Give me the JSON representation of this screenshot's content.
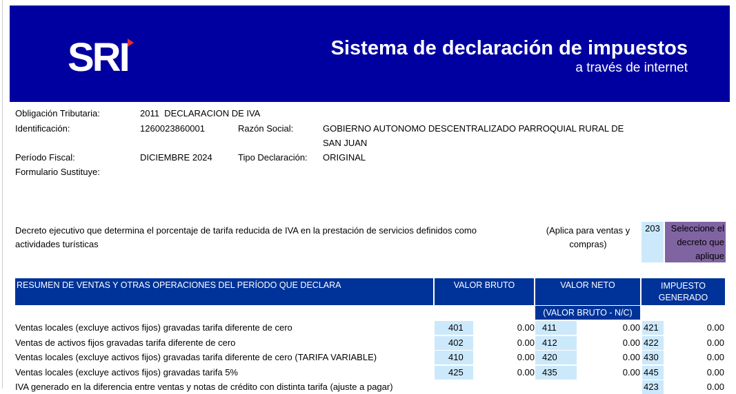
{
  "header": {
    "logo": "SRI",
    "title": "Sistema de declaración de impuestos",
    "subtitle": "a través de internet",
    "colors": {
      "banner": "#0000a0",
      "table_header": "#003399",
      "code_cell": "#cce9fb",
      "select_cell": "#8064a2"
    }
  },
  "info": {
    "obligacion_label": "Obligación Tributaria:",
    "obligacion_value": "2011  DECLARACION DE IVA",
    "identificacion_label": "Identificación:",
    "identificacion_value": "1260023860001",
    "razon_label": "Razón Social:",
    "razon_value_1": "GOBIERNO AUTONOMO DESCENTRALIZADO PARROQUIAL RURAL DE",
    "razon_value_2": "SAN JUAN",
    "periodo_label": "Período Fiscal:",
    "periodo_value": "DICIEMBRE 2024",
    "tipo_label": "Tipo Declaración:",
    "tipo_value": "ORIGINAL",
    "sustituye_label": "Formulario Sustituye:"
  },
  "decreto": {
    "text_1": "Decreto ejecutivo que determina el porcentaje de tarifa reducida de IVA en la prestación de servicios definidos como",
    "text_2": "actividades turísticas",
    "note_1": "(Aplica para ventas y",
    "note_2": "compras)",
    "code": "203",
    "select_1": "Seleccione el",
    "select_2": "decreto que",
    "select_3": "aplique"
  },
  "table": {
    "title": "RESUMEN DE VENTAS Y OTRAS OPERACIONES DEL PERÍODO QUE DECLARA",
    "col_bruto": "VALOR BRUTO",
    "col_neto": "VALOR NETO",
    "col_neto_sub": "(VALOR BRUTO - N/C)",
    "col_impuesto_1": "IMPUESTO",
    "col_impuesto_2": "GENERADO",
    "rows": [
      {
        "label": "Ventas locales (excluye activos fijos) gravadas tarifa diferente de cero",
        "c1": "401",
        "v1": "0.00",
        "c2": "411",
        "v2": "0.00",
        "c3": "421",
        "v3": "0.00"
      },
      {
        "label": "Ventas de activos fijos gravadas tarifa diferente de cero",
        "c1": "402",
        "v1": "0.00",
        "c2": "412",
        "v2": "0.00",
        "c3": "422",
        "v3": "0.00"
      },
      {
        "label": "Ventas locales (excluye activos fijos) gravadas tarifa diferente de cero (TARIFA VARIABLE)",
        "c1": "410",
        "v1": "0.00",
        "c2": "420",
        "v2": "0.00",
        "c3": "430",
        "v3": "0.00"
      },
      {
        "label": "Ventas locales (excluye activos fijos) gravadas tarifa 5%",
        "c1": "425",
        "v1": "0.00",
        "c2": "435",
        "v2": "0.00",
        "c3": "445",
        "v3": "0.00"
      },
      {
        "label": "IVA generado en la diferencia entre ventas y notas de crédito con distinta tarifa (ajuste a pagar)",
        "c3": "423",
        "v3": "0.00"
      }
    ]
  }
}
